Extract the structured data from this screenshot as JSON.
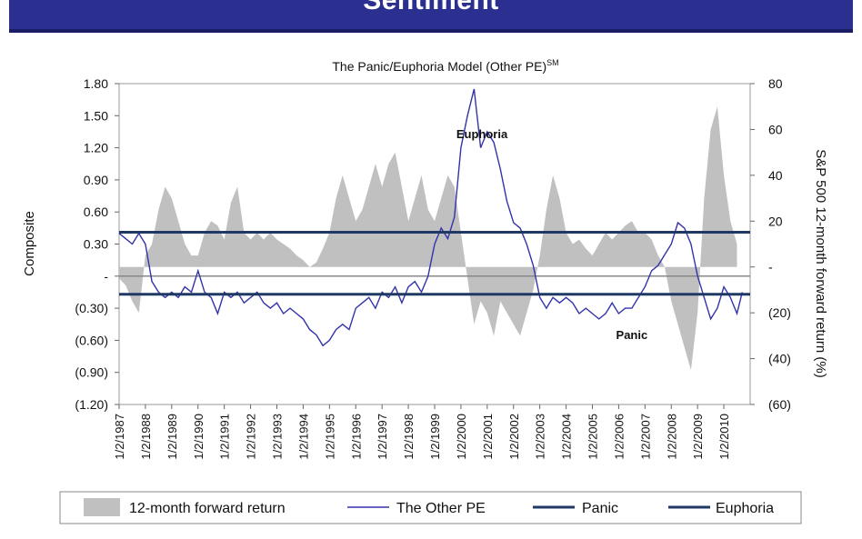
{
  "banner": {
    "title": "Sentiment"
  },
  "chart_data": {
    "type": "line",
    "title": "The Panic/Euphoria Model (Other PE)",
    "title_superscript": "SM",
    "ylabel": "Composite",
    "y2label": "S&P 500 12-month forward return (%)",
    "ylim": [
      -1.2,
      1.8
    ],
    "y2lim": [
      -60,
      80
    ],
    "yticks": [
      {
        "value": 1.8,
        "label": "1.80"
      },
      {
        "value": 1.5,
        "label": "1.50"
      },
      {
        "value": 1.2,
        "label": "1.20"
      },
      {
        "value": 0.9,
        "label": "0.90"
      },
      {
        "value": 0.6,
        "label": "0.60"
      },
      {
        "value": 0.3,
        "label": "0.30"
      },
      {
        "value": 0,
        "label": "-"
      },
      {
        "value": -0.3,
        "label": "(0.30)"
      },
      {
        "value": -0.6,
        "label": "(0.60)"
      },
      {
        "value": -0.9,
        "label": "(0.90)"
      },
      {
        "value": -1.2,
        "label": "(1.20)"
      }
    ],
    "y2ticks": [
      {
        "value": 80,
        "label": "80"
      },
      {
        "value": 60,
        "label": "60"
      },
      {
        "value": 40,
        "label": "40"
      },
      {
        "value": 20,
        "label": "20"
      },
      {
        "value": 0,
        "label": "-"
      },
      {
        "value": -20,
        "label": "(20)"
      },
      {
        "value": -40,
        "label": "(40)"
      },
      {
        "value": -60,
        "label": "(60)"
      }
    ],
    "xlim": [
      1987.0,
      2011.0
    ],
    "xticks": [
      {
        "value": 1987,
        "label": "1/2/1987"
      },
      {
        "value": 1988,
        "label": "1/2/1988"
      },
      {
        "value": 1989,
        "label": "1/2/1989"
      },
      {
        "value": 1990,
        "label": "1/2/1990"
      },
      {
        "value": 1991,
        "label": "1/2/1991"
      },
      {
        "value": 1992,
        "label": "1/2/1992"
      },
      {
        "value": 1993,
        "label": "1/2/1993"
      },
      {
        "value": 1994,
        "label": "1/2/1994"
      },
      {
        "value": 1995,
        "label": "1/2/1995"
      },
      {
        "value": 1996,
        "label": "1/2/1996"
      },
      {
        "value": 1997,
        "label": "1/2/1997"
      },
      {
        "value": 1998,
        "label": "1/2/1998"
      },
      {
        "value": 1999,
        "label": "1/2/1999"
      },
      {
        "value": 2000,
        "label": "1/2/2000"
      },
      {
        "value": 2001,
        "label": "1/2/2001"
      },
      {
        "value": 2002,
        "label": "1/2/2002"
      },
      {
        "value": 2003,
        "label": "1/2/2003"
      },
      {
        "value": 2004,
        "label": "1/2/2004"
      },
      {
        "value": 2005,
        "label": "1/2/2005"
      },
      {
        "value": 2006,
        "label": "1/2/2006"
      },
      {
        "value": 2007,
        "label": "1/2/2007"
      },
      {
        "value": 2008,
        "label": "1/2/2008"
      },
      {
        "value": 2009,
        "label": "1/2/2009"
      },
      {
        "value": 2010,
        "label": "1/2/2010"
      }
    ],
    "panic_level": -0.17,
    "euphoria_level": 0.41,
    "annotations": [
      {
        "text": "Euphoria",
        "x": 2000.8,
        "y": 1.29
      },
      {
        "text": "Panic",
        "x": 2006.5,
        "y": -0.59
      }
    ],
    "series": [
      {
        "name": "12-month forward return",
        "kind": "area",
        "axis": "y2",
        "color": "#c0c0c0",
        "x": [
          1987.0,
          1987.25,
          1987.5,
          1987.75,
          1988.0,
          1988.25,
          1988.5,
          1988.75,
          1989.0,
          1989.25,
          1989.5,
          1989.75,
          1990.0,
          1990.25,
          1990.5,
          1990.75,
          1991.0,
          1991.25,
          1991.5,
          1991.75,
          1992.0,
          1992.25,
          1992.5,
          1992.75,
          1993.0,
          1993.25,
          1993.5,
          1993.75,
          1994.0,
          1994.25,
          1994.5,
          1994.75,
          1995.0,
          1995.25,
          1995.5,
          1995.75,
          1996.0,
          1996.25,
          1996.5,
          1996.75,
          1997.0,
          1997.25,
          1997.5,
          1997.75,
          1998.0,
          1998.25,
          1998.5,
          1998.75,
          1999.0,
          1999.25,
          1999.5,
          1999.75,
          2000.0,
          2000.25,
          2000.5,
          2000.75,
          2001.0,
          2001.25,
          2001.5,
          2001.75,
          2002.0,
          2002.25,
          2002.5,
          2002.75,
          2003.0,
          2003.25,
          2003.5,
          2003.75,
          2004.0,
          2004.25,
          2004.5,
          2004.75,
          2005.0,
          2005.25,
          2005.5,
          2005.75,
          2006.0,
          2006.25,
          2006.5,
          2006.75,
          2007.0,
          2007.25,
          2007.5,
          2007.75,
          2008.0,
          2008.25,
          2008.5,
          2008.75,
          2009.0,
          2009.25,
          2009.5,
          2009.75,
          2010.0,
          2010.25,
          2010.5
        ],
        "values": [
          -5,
          -8,
          -15,
          -20,
          5,
          10,
          25,
          35,
          30,
          20,
          10,
          5,
          5,
          15,
          20,
          18,
          12,
          28,
          35,
          15,
          12,
          15,
          12,
          15,
          12,
          10,
          8,
          5,
          3,
          0,
          2,
          8,
          15,
          30,
          40,
          30,
          20,
          25,
          35,
          45,
          35,
          45,
          50,
          35,
          20,
          30,
          40,
          25,
          20,
          30,
          40,
          35,
          15,
          -5,
          -25,
          -15,
          -20,
          -30,
          -15,
          -20,
          -25,
          -30,
          -20,
          -10,
          5,
          25,
          40,
          30,
          15,
          10,
          12,
          8,
          5,
          10,
          15,
          12,
          15,
          18,
          20,
          15,
          15,
          12,
          5,
          0,
          -15,
          -25,
          -35,
          -45,
          -20,
          30,
          60,
          70,
          40,
          20,
          10
        ]
      },
      {
        "name": "The Other PE",
        "kind": "line",
        "axis": "y",
        "color": "#3333aa",
        "x": [
          1987.0,
          1987.25,
          1987.5,
          1987.75,
          1988.0,
          1988.25,
          1988.5,
          1988.75,
          1989.0,
          1989.25,
          1989.5,
          1989.75,
          1990.0,
          1990.25,
          1990.5,
          1990.75,
          1991.0,
          1991.25,
          1991.5,
          1991.75,
          1992.0,
          1992.25,
          1992.5,
          1992.75,
          1993.0,
          1993.25,
          1993.5,
          1993.75,
          1994.0,
          1994.25,
          1994.5,
          1994.75,
          1995.0,
          1995.25,
          1995.5,
          1995.75,
          1996.0,
          1996.25,
          1996.5,
          1996.75,
          1997.0,
          1997.25,
          1997.5,
          1997.75,
          1998.0,
          1998.25,
          1998.5,
          1998.75,
          1999.0,
          1999.25,
          1999.5,
          1999.75,
          2000.0,
          2000.25,
          2000.5,
          2000.75,
          2001.0,
          2001.25,
          2001.5,
          2001.75,
          2002.0,
          2002.25,
          2002.5,
          2002.75,
          2003.0,
          2003.25,
          2003.5,
          2003.75,
          2004.0,
          2004.25,
          2004.5,
          2004.75,
          2005.0,
          2005.25,
          2005.5,
          2005.75,
          2006.0,
          2006.25,
          2006.5,
          2006.75,
          2007.0,
          2007.25,
          2007.5,
          2007.75,
          2008.0,
          2008.25,
          2008.5,
          2008.75,
          2009.0,
          2009.25,
          2009.5,
          2009.75,
          2010.0,
          2010.25,
          2010.5,
          2010.7
        ],
        "values": [
          0.4,
          0.35,
          0.3,
          0.4,
          0.3,
          -0.05,
          -0.15,
          -0.2,
          -0.15,
          -0.2,
          -0.1,
          -0.15,
          0.05,
          -0.15,
          -0.2,
          -0.35,
          -0.15,
          -0.2,
          -0.15,
          -0.25,
          -0.2,
          -0.15,
          -0.25,
          -0.3,
          -0.25,
          -0.35,
          -0.3,
          -0.35,
          -0.4,
          -0.5,
          -0.55,
          -0.65,
          -0.6,
          -0.5,
          -0.45,
          -0.5,
          -0.3,
          -0.25,
          -0.2,
          -0.3,
          -0.15,
          -0.2,
          -0.1,
          -0.25,
          -0.1,
          -0.05,
          -0.15,
          0.0,
          0.3,
          0.45,
          0.35,
          0.55,
          1.2,
          1.5,
          1.75,
          1.2,
          1.35,
          1.25,
          1.0,
          0.7,
          0.5,
          0.45,
          0.3,
          0.1,
          -0.2,
          -0.3,
          -0.2,
          -0.25,
          -0.2,
          -0.25,
          -0.35,
          -0.3,
          -0.35,
          -0.4,
          -0.35,
          -0.25,
          -0.35,
          -0.3,
          -0.3,
          -0.2,
          -0.1,
          0.05,
          0.1,
          0.2,
          0.3,
          0.5,
          0.45,
          0.3,
          0.0,
          -0.2,
          -0.4,
          -0.3,
          -0.1,
          -0.2,
          -0.35,
          -0.15
        ]
      },
      {
        "name": "Panic",
        "kind": "hline",
        "color": "#1f3864"
      },
      {
        "name": "Euphoria",
        "kind": "hline",
        "color": "#1f3864"
      }
    ],
    "legend": {
      "position": "bottom"
    }
  }
}
